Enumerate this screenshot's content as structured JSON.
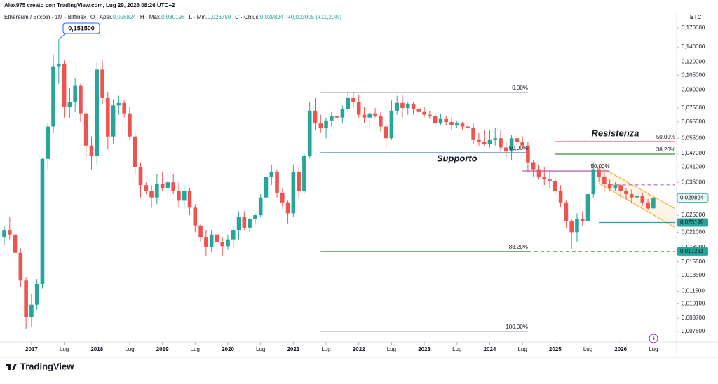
{
  "header": {
    "author": "Alex975 creato con TradingView.com, Lug 29, 2026 08:26 UTC+2",
    "symbol": "Ethereum / Bitcoin · 1M · Bitfinex",
    "ohlc": [
      {
        "key": "O · Aper.",
        "val": "0,026824"
      },
      {
        "key": "H · Max.",
        "val": "0,030196"
      },
      {
        "key": "L · Min.",
        "val": "0,026750"
      },
      {
        "key": "C · Chius.",
        "val": "0,029824"
      }
    ],
    "change": "+0,003005 (+11,20%)"
  },
  "footer": {
    "brand": "TradingView"
  },
  "chart_data": {
    "type": "candlestick",
    "log_scale": true,
    "y_unit": "BTC",
    "up_color": "#26a69a",
    "down_color": "#ef5350",
    "xlim": [
      "2016-08",
      "2026-11"
    ],
    "ylim": [
      0.00682,
      0.2035
    ],
    "xticks": [
      {
        "value": "2017-01",
        "label": "2017"
      },
      {
        "value": "2017-07",
        "label": "Lug"
      },
      {
        "value": "2018-01",
        "label": "2018"
      },
      {
        "value": "2018-07",
        "label": "Lug"
      },
      {
        "value": "2019-01",
        "label": "2019"
      },
      {
        "value": "2019-07",
        "label": "Lug"
      },
      {
        "value": "2020-01",
        "label": "2020"
      },
      {
        "value": "2020-07",
        "label": "Lug"
      },
      {
        "value": "2021-01",
        "label": "2021"
      },
      {
        "value": "2021-07",
        "label": "Lug"
      },
      {
        "value": "2022-01",
        "label": "2022"
      },
      {
        "value": "2022-07",
        "label": "Lug"
      },
      {
        "value": "2023-01",
        "label": "2023"
      },
      {
        "value": "2023-07",
        "label": "Lug"
      },
      {
        "value": "2024-01",
        "label": "2024"
      },
      {
        "value": "2024-07",
        "label": "Lug"
      },
      {
        "value": "2025-01",
        "label": "2025"
      },
      {
        "value": "2025-07",
        "label": "Lug"
      },
      {
        "value": "2026-01",
        "label": "2026"
      },
      {
        "value": "2026-07",
        "label": "Lug"
      }
    ],
    "yticks": [
      {
        "value": 0.17,
        "label": "0,170000"
      },
      {
        "value": 0.14,
        "label": "0,140000"
      },
      {
        "value": 0.12,
        "label": "0,120000"
      },
      {
        "value": 0.105,
        "label": "0,105000"
      },
      {
        "value": 0.09,
        "label": "0,090000"
      },
      {
        "value": 0.075,
        "label": "0,075000"
      },
      {
        "value": 0.065,
        "label": "0,065000"
      },
      {
        "value": 0.055,
        "label": "0,055000"
      },
      {
        "value": 0.047,
        "label": "0,047000"
      },
      {
        "value": 0.041,
        "label": "0,041000"
      },
      {
        "value": 0.035,
        "label": "0,035000"
      },
      {
        "value": 0.025,
        "label": "0,025000"
      },
      {
        "value": 0.021,
        "label": "0,021000"
      },
      {
        "value": 0.018,
        "label": "0,018000"
      },
      {
        "value": 0.0155,
        "label": "0,015500"
      },
      {
        "value": 0.0135,
        "label": "0,013500"
      },
      {
        "value": 0.0115,
        "label": "0,011500"
      },
      {
        "value": 0.0101,
        "label": "0,010100"
      },
      {
        "value": 0.0087,
        "label": "0,008700"
      },
      {
        "value": 0.0076,
        "label": "0,007600"
      }
    ],
    "x": [
      "2016-08",
      "2016-09",
      "2016-10",
      "2016-11",
      "2016-12",
      "2017-01",
      "2017-02",
      "2017-03",
      "2017-04",
      "2017-05",
      "2017-06",
      "2017-07",
      "2017-08",
      "2017-09",
      "2017-10",
      "2017-11",
      "2017-12",
      "2018-01",
      "2018-02",
      "2018-03",
      "2018-04",
      "2018-05",
      "2018-06",
      "2018-07",
      "2018-08",
      "2018-09",
      "2018-10",
      "2018-11",
      "2018-12",
      "2019-01",
      "2019-02",
      "2019-03",
      "2019-04",
      "2019-05",
      "2019-06",
      "2019-07",
      "2019-08",
      "2019-09",
      "2019-10",
      "2019-11",
      "2019-12",
      "2020-01",
      "2020-02",
      "2020-03",
      "2020-04",
      "2020-05",
      "2020-06",
      "2020-07",
      "2020-08",
      "2020-09",
      "2020-10",
      "2020-11",
      "2020-12",
      "2021-01",
      "2021-02",
      "2021-03",
      "2021-04",
      "2021-05",
      "2021-06",
      "2021-07",
      "2021-08",
      "2021-09",
      "2021-10",
      "2021-11",
      "2021-12",
      "2022-01",
      "2022-02",
      "2022-03",
      "2022-04",
      "2022-05",
      "2022-06",
      "2022-07",
      "2022-08",
      "2022-09",
      "2022-10",
      "2022-11",
      "2022-12",
      "2023-01",
      "2023-02",
      "2023-03",
      "2023-04",
      "2023-05",
      "2023-06",
      "2023-07",
      "2023-08",
      "2023-09",
      "2023-10",
      "2023-11",
      "2023-12",
      "2024-01",
      "2024-02",
      "2024-03",
      "2024-04",
      "2024-05",
      "2024-06",
      "2024-07",
      "2024-08",
      "2024-09",
      "2024-10",
      "2024-11",
      "2024-12",
      "2025-01",
      "2025-02",
      "2025-03",
      "2025-04",
      "2025-05",
      "2025-06",
      "2025-07",
      "2025-08",
      "2025-09",
      "2025-10",
      "2025-11",
      "2025-12",
      "2026-01",
      "2026-02",
      "2026-03",
      "2026-04",
      "2026-05",
      "2026-06",
      "2026-07"
    ],
    "open": [
      0.02,
      0.0215,
      0.0205,
      0.017,
      0.0128,
      0.0088,
      0.01,
      0.0123,
      0.0445,
      0.062,
      0.115,
      0.118,
      0.076,
      0.08,
      0.094,
      0.071,
      0.051,
      0.046,
      0.111,
      0.083,
      0.056,
      0.077,
      0.079,
      0.071,
      0.056,
      0.041,
      0.034,
      0.032,
      0.03,
      0.0345,
      0.033,
      0.035,
      0.032,
      0.029,
      0.032,
      0.027,
      0.0225,
      0.02,
      0.018,
      0.0205,
      0.019,
      0.0182,
      0.0195,
      0.0215,
      0.0245,
      0.022,
      0.024,
      0.025,
      0.03,
      0.037,
      0.039,
      0.0315,
      0.0285,
      0.0255,
      0.039,
      0.032,
      0.046,
      0.073,
      0.064,
      0.061,
      0.066,
      0.069,
      0.068,
      0.074,
      0.083,
      0.08,
      0.07,
      0.068,
      0.071,
      0.069,
      0.062,
      0.055,
      0.073,
      0.079,
      0.075,
      0.078,
      0.074,
      0.072,
      0.07,
      0.069,
      0.064,
      0.067,
      0.065,
      0.063,
      0.064,
      0.062,
      0.061,
      0.054,
      0.053,
      0.052,
      0.054,
      0.055,
      0.05,
      0.048,
      0.055,
      0.053,
      0.051,
      0.043,
      0.04,
      0.037,
      0.036,
      0.0355,
      0.032,
      0.0285,
      0.0235,
      0.021,
      0.024,
      0.0235,
      0.031,
      0.04,
      0.037,
      0.0345,
      0.033,
      0.034,
      0.032,
      0.031,
      0.03,
      0.0305,
      0.0285,
      0.026824
    ],
    "high": [
      0.0225,
      0.0245,
      0.0215,
      0.0178,
      0.0132,
      0.0112,
      0.013,
      0.045,
      0.064,
      0.13,
      0.1515,
      0.122,
      0.092,
      0.102,
      0.096,
      0.074,
      0.056,
      0.12,
      0.122,
      0.088,
      0.082,
      0.085,
      0.081,
      0.076,
      0.058,
      0.043,
      0.035,
      0.034,
      0.038,
      0.039,
      0.037,
      0.038,
      0.035,
      0.034,
      0.033,
      0.028,
      0.023,
      0.0215,
      0.0215,
      0.0215,
      0.02,
      0.0205,
      0.0225,
      0.026,
      0.026,
      0.0245,
      0.0255,
      0.031,
      0.038,
      0.042,
      0.04,
      0.033,
      0.029,
      0.042,
      0.041,
      0.047,
      0.08,
      0.083,
      0.07,
      0.068,
      0.072,
      0.078,
      0.077,
      0.089,
      0.088,
      0.086,
      0.076,
      0.073,
      0.075,
      0.072,
      0.064,
      0.081,
      0.085,
      0.086,
      0.08,
      0.08,
      0.076,
      0.076,
      0.073,
      0.072,
      0.071,
      0.069,
      0.068,
      0.066,
      0.065,
      0.064,
      0.064,
      0.058,
      0.06,
      0.06,
      0.061,
      0.06,
      0.053,
      0.057,
      0.057,
      0.056,
      0.053,
      0.044,
      0.042,
      0.041,
      0.04,
      0.0365,
      0.034,
      0.029,
      0.024,
      0.0255,
      0.026,
      0.032,
      0.043,
      0.041,
      0.039,
      0.036,
      0.035,
      0.0345,
      0.033,
      0.0325,
      0.032,
      0.0315,
      0.0295,
      0.030196
    ],
    "low": [
      0.0185,
      0.0195,
      0.016,
      0.012,
      0.0078,
      0.008,
      0.0095,
      0.0118,
      0.04,
      0.058,
      0.096,
      0.068,
      0.068,
      0.072,
      0.065,
      0.045,
      0.04,
      0.042,
      0.078,
      0.049,
      0.052,
      0.07,
      0.068,
      0.054,
      0.038,
      0.03,
      0.031,
      0.027,
      0.028,
      0.032,
      0.03,
      0.031,
      0.027,
      0.027,
      0.025,
      0.021,
      0.019,
      0.0165,
      0.0172,
      0.018,
      0.0165,
      0.0175,
      0.0178,
      0.0195,
      0.0215,
      0.021,
      0.023,
      0.0245,
      0.0295,
      0.034,
      0.03,
      0.027,
      0.023,
      0.0245,
      0.03,
      0.0315,
      0.045,
      0.06,
      0.058,
      0.055,
      0.062,
      0.064,
      0.064,
      0.072,
      0.076,
      0.068,
      0.064,
      0.061,
      0.068,
      0.059,
      0.049,
      0.054,
      0.07,
      0.068,
      0.07,
      0.07,
      0.071,
      0.068,
      0.067,
      0.062,
      0.063,
      0.063,
      0.06,
      0.061,
      0.06,
      0.06,
      0.052,
      0.051,
      0.051,
      0.05,
      0.051,
      0.048,
      0.045,
      0.044,
      0.051,
      0.049,
      0.039,
      0.037,
      0.036,
      0.034,
      0.033,
      0.031,
      0.027,
      0.022,
      0.0177,
      0.019,
      0.0225,
      0.023,
      0.03,
      0.035,
      0.032,
      0.032,
      0.032,
      0.03,
      0.0295,
      0.0285,
      0.029,
      0.0275,
      0.0265,
      0.02675
    ],
    "close": [
      0.0215,
      0.0205,
      0.017,
      0.0128,
      0.0088,
      0.01,
      0.0123,
      0.0445,
      0.062,
      0.115,
      0.118,
      0.076,
      0.08,
      0.094,
      0.071,
      0.051,
      0.046,
      0.111,
      0.083,
      0.056,
      0.077,
      0.079,
      0.071,
      0.056,
      0.041,
      0.034,
      0.032,
      0.03,
      0.0345,
      0.033,
      0.035,
      0.032,
      0.029,
      0.032,
      0.027,
      0.0225,
      0.02,
      0.018,
      0.0205,
      0.019,
      0.0182,
      0.0195,
      0.0215,
      0.0245,
      0.022,
      0.024,
      0.025,
      0.03,
      0.037,
      0.039,
      0.0315,
      0.0285,
      0.0255,
      0.039,
      0.032,
      0.046,
      0.073,
      0.064,
      0.061,
      0.066,
      0.069,
      0.068,
      0.074,
      0.083,
      0.08,
      0.07,
      0.068,
      0.071,
      0.069,
      0.062,
      0.055,
      0.073,
      0.079,
      0.075,
      0.078,
      0.074,
      0.072,
      0.07,
      0.069,
      0.064,
      0.067,
      0.065,
      0.063,
      0.064,
      0.062,
      0.061,
      0.054,
      0.053,
      0.052,
      0.054,
      0.055,
      0.05,
      0.048,
      0.055,
      0.053,
      0.051,
      0.043,
      0.04,
      0.037,
      0.036,
      0.0355,
      0.032,
      0.0285,
      0.0235,
      0.021,
      0.024,
      0.0235,
      0.031,
      0.04,
      0.037,
      0.0345,
      0.033,
      0.034,
      0.032,
      0.031,
      0.03,
      0.0305,
      0.0285,
      0.0268,
      0.029824
    ],
    "lines": [
      {
        "x": [
          "2021-06",
          "2024-08"
        ],
        "y": 0.0878,
        "color": "#b2b5be",
        "label": "0,00%"
      },
      {
        "x": [
          "2021-06",
          "2024-08"
        ],
        "y": 0.0474,
        "color": "#5b8fd9",
        "label": "50,00%"
      },
      {
        "x": [
          "2021-06",
          "2024-08"
        ],
        "y": 0.017231,
        "color": "#43a047",
        "label": "88,20%"
      },
      {
        "x": [
          "2024-08",
          "2026-11"
        ],
        "y": 0.017231,
        "color": "#43a047",
        "dashed": true
      },
      {
        "x": [
          "2021-06",
          "2024-08"
        ],
        "y": 0.0076,
        "color": "#b2b5be",
        "label": "100,00%"
      },
      {
        "x": [
          "2025-01",
          "2026-11"
        ],
        "y": 0.0531,
        "color": "#f23645",
        "label": "50,00%"
      },
      {
        "x": [
          "2025-01",
          "2026-11"
        ],
        "y": 0.0467,
        "color": "#388e3c",
        "label": "38,20%"
      },
      {
        "x": [
          "2024-07",
          "2025-11"
        ],
        "y": 0.0393,
        "color": "#ba68c8",
        "label": "50,00%"
      },
      {
        "x": [
          "2025-11",
          "2026-11"
        ],
        "y": 0.0341,
        "color": "#ba68c8",
        "dashed": true
      },
      {
        "x": [
          "2025-09",
          "2026-11"
        ],
        "y": 0.023199,
        "color": "#26a69a"
      }
    ],
    "channel": {
      "color": "#f5a623",
      "x": [
        "2025-09",
        "2026-11"
      ],
      "upper": [
        0.0413,
        0.0267
      ],
      "lower": [
        0.0347,
        0.022
      ]
    },
    "annotations": [
      {
        "text": "Supporto",
        "x": "2023-07",
        "y": 0.0444,
        "color": "#3d7be0"
      },
      {
        "text": "Resistenza",
        "x": "2025-12",
        "y": 0.0575,
        "color": "#e8354a"
      }
    ],
    "peak": {
      "label": "0,151500",
      "x": "2017-06",
      "value": 0.1515
    },
    "price_labels": [
      {
        "value": 0.029824,
        "label": "0,029824",
        "filled": false,
        "dotted_line": true
      },
      {
        "value": 0.023199,
        "label": "0,023199",
        "filled": true
      },
      {
        "value": 0.017231,
        "label": "0,017231",
        "filled": true
      }
    ]
  }
}
